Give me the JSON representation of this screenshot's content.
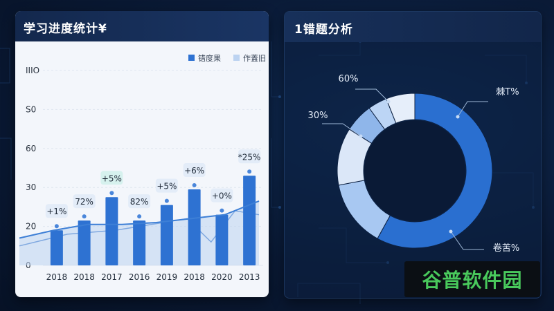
{
  "colors": {
    "bar": "#2e72d2",
    "line": "#3d7fd6",
    "area": "#bcd3f1",
    "donut_dark": "#2a6fd0",
    "donut_mid": "#9cc0ee",
    "donut_light": "#dbe7f8",
    "watermark": "#49c95c"
  },
  "left_panel": {
    "title": "学习进度统计¥"
  },
  "right_panel": {
    "title": "1错题分析"
  },
  "watermark": {
    "text": "谷普软件园"
  },
  "chart_data": [
    {
      "type": "bar",
      "title": "学习进度统计¥",
      "legend": [
        "错度果",
        "作蓋旧"
      ],
      "legend_position": "top-right",
      "y_tick_labels": [
        "0",
        "20",
        "30",
        "60",
        "S0",
        "IIIO"
      ],
      "ylim": [
        0,
        100
      ],
      "grid": true,
      "categories": [
        "2018",
        "2018",
        "2017",
        "2016",
        "2019",
        "2018",
        "2020",
        "2013"
      ],
      "series": [
        {
          "name": "错度果",
          "type": "bar",
          "values": [
            18,
            23,
            35,
            23,
            31,
            39,
            26,
            46
          ]
        },
        {
          "name": "作蓋旧",
          "type": "line",
          "values": [
            14,
            18,
            21,
            21,
            22,
            24,
            26,
            33
          ]
        }
      ],
      "secondary_line_values": [
        10,
        13,
        16,
        17,
        18,
        20,
        22,
        24,
        12,
        28,
        26
      ],
      "data_labels": [
        "+1%",
        "72%",
        "+5%",
        "82%",
        "+5%",
        "+6%",
        "+0%",
        "*25%"
      ]
    },
    {
      "type": "pie",
      "title": "1错题分析",
      "style": "donut",
      "values": [
        58,
        14,
        12,
        6,
        4,
        6
      ],
      "colors": [
        "#2a6fd0",
        "#a8c8f2",
        "#dbe7f8",
        "#8fb6ea",
        "#bcd5f5",
        "#e6eefa"
      ],
      "callouts": [
        "60%",
        "30%",
        "棘T%",
        "卷苦%"
      ]
    }
  ]
}
